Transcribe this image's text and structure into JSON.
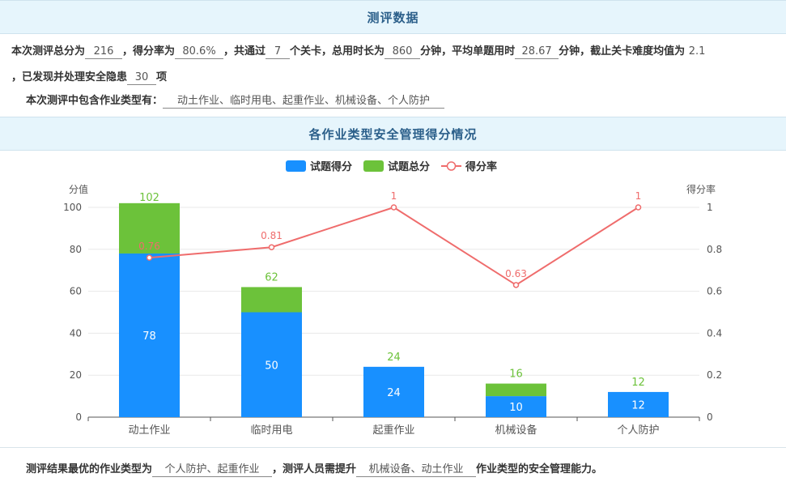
{
  "header": {
    "title": "测评数据"
  },
  "summary": {
    "total_score_prefix": "本次测评总分为",
    "total_score": "216",
    "score_rate_prefix": "，得分率为",
    "score_rate": "80.6%",
    "levels_prefix": "，共通过",
    "levels": "7",
    "levels_suffix": "个关卡，总用时长为",
    "total_time": "860",
    "time_unit": "分钟，平均单题用时",
    "avg_time": "28.67",
    "difficulty_prefix": "分钟，截止关卡难度均值为",
    "difficulty": "2.1",
    "hazards_prefix": "，已发现并处理安全隐患",
    "hazards": "30",
    "hazards_suffix": "项",
    "types_prefix": "本次测评中包含作业类型有：",
    "types": "动土作业、临时用电、起重作业、机械设备、个人防护"
  },
  "section2": {
    "title": "各作业类型安全管理得分情况"
  },
  "conclusion": {
    "prefix": "测评结果最优的作业类型为",
    "best": "个人防护、起重作业",
    "middle": "，测评人员需提升",
    "improve": "机械设备、动土作业",
    "suffix": "作业类型的安全管理能力。"
  },
  "colors": {
    "score": "#1890ff",
    "total": "#6cc23a",
    "rate": "#ef6c6c",
    "axis": "#555555",
    "grid": "#e8e8e8"
  },
  "chart_data": {
    "type": "bar",
    "categories": [
      "动土作业",
      "临时用电",
      "起重作业",
      "机械设备",
      "个人防护"
    ],
    "series": [
      {
        "name": "试题得分",
        "type": "bar",
        "stack": true,
        "values": [
          78,
          50,
          24,
          10,
          12
        ]
      },
      {
        "name": "试题总分",
        "type": "bar",
        "stack": true,
        "values": [
          102,
          62,
          24,
          16,
          12
        ]
      },
      {
        "name": "得分率",
        "type": "line",
        "axis": "right",
        "values": [
          0.76,
          0.81,
          1,
          0.63,
          1
        ]
      }
    ],
    "ylabel": "分值",
    "ylabel_right": "得分率",
    "ylim": [
      0,
      100
    ],
    "y_ticks": [
      "0",
      "20",
      "40",
      "60",
      "80",
      "100"
    ],
    "ylim_right": [
      0,
      1
    ],
    "y_right_ticks": [
      "0",
      "0.2",
      "0.4",
      "0.6",
      "0.8",
      "1"
    ],
    "legend": "top-center",
    "grid": true
  }
}
